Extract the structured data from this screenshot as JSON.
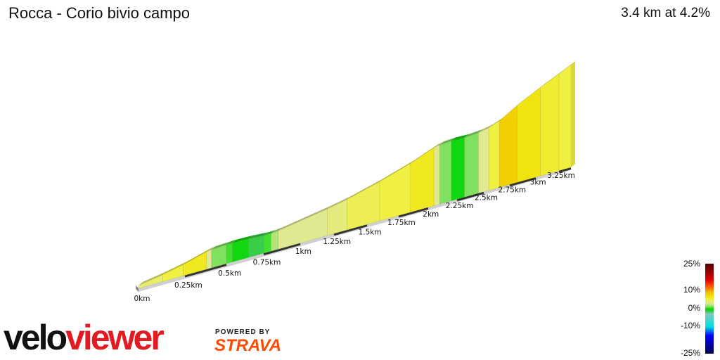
{
  "header": {
    "title": "Rocca - Corio bivio campo",
    "summary": "3.4 km at 4.2%"
  },
  "chart_data": {
    "type": "area",
    "title": "Rocca - Corio bivio campo",
    "distance_km": 3.4,
    "avg_gradient_pct": 4.2,
    "x_unit": "km",
    "x_ticks": [
      "0km",
      "0.25km",
      "0.5km",
      "0.75km",
      "1km",
      "1.25km",
      "1.5km",
      "1.75km",
      "2km",
      "2.25km",
      "2.5km",
      "2.75km",
      "3km",
      "3.25km"
    ],
    "segments": [
      {
        "start_km": 0.0,
        "end_km": 0.13,
        "gradient_pct": 4
      },
      {
        "start_km": 0.13,
        "end_km": 0.24,
        "gradient_pct": 5
      },
      {
        "start_km": 0.24,
        "end_km": 0.38,
        "gradient_pct": 6
      },
      {
        "start_km": 0.38,
        "end_km": 0.41,
        "gradient_pct": 3
      },
      {
        "start_km": 0.41,
        "end_km": 0.5,
        "gradient_pct": 1
      },
      {
        "start_km": 0.5,
        "end_km": 0.54,
        "gradient_pct": 0.5
      },
      {
        "start_km": 0.54,
        "end_km": 0.65,
        "gradient_pct": -0.5
      },
      {
        "start_km": 0.65,
        "end_km": 0.75,
        "gradient_pct": -1.5
      },
      {
        "start_km": 0.75,
        "end_km": 0.8,
        "gradient_pct": 0.5
      },
      {
        "start_km": 0.8,
        "end_km": 0.85,
        "gradient_pct": 2
      },
      {
        "start_km": 0.85,
        "end_km": 1.2,
        "gradient_pct": 3
      },
      {
        "start_km": 1.2,
        "end_km": 1.35,
        "gradient_pct": 3.5
      },
      {
        "start_km": 1.35,
        "end_km": 1.6,
        "gradient_pct": 4.5
      },
      {
        "start_km": 1.6,
        "end_km": 1.85,
        "gradient_pct": 5
      },
      {
        "start_km": 1.85,
        "end_km": 2.05,
        "gradient_pct": 6
      },
      {
        "start_km": 2.05,
        "end_km": 2.1,
        "gradient_pct": 3
      },
      {
        "start_km": 2.1,
        "end_km": 2.2,
        "gradient_pct": 1
      },
      {
        "start_km": 2.2,
        "end_km": 2.32,
        "gradient_pct": -0.5
      },
      {
        "start_km": 2.32,
        "end_km": 2.45,
        "gradient_pct": 1
      },
      {
        "start_km": 2.45,
        "end_km": 2.55,
        "gradient_pct": 3
      },
      {
        "start_km": 2.55,
        "end_km": 2.65,
        "gradient_pct": 5
      },
      {
        "start_km": 2.65,
        "end_km": 2.82,
        "gradient_pct": 8
      },
      {
        "start_km": 2.82,
        "end_km": 3.05,
        "gradient_pct": 6.5
      },
      {
        "start_km": 3.05,
        "end_km": 3.25,
        "gradient_pct": 5.5
      },
      {
        "start_km": 3.25,
        "end_km": 3.4,
        "gradient_pct": 5
      }
    ],
    "legend": {
      "labels": [
        "25%",
        "10%",
        "0%",
        "-10%",
        "-25%"
      ],
      "stops": [
        {
          "pct": 25,
          "color": "#500000"
        },
        {
          "pct": 16,
          "color": "#e00000"
        },
        {
          "pct": 12,
          "color": "#ff6000"
        },
        {
          "pct": 9,
          "color": "#f0c000"
        },
        {
          "pct": 7,
          "color": "#f0e000"
        },
        {
          "pct": 5,
          "color": "#f0f040"
        },
        {
          "pct": 3,
          "color": "#e0e890"
        },
        {
          "pct": 1,
          "color": "#80e060"
        },
        {
          "pct": 0,
          "color": "#00dd00"
        },
        {
          "pct": -1,
          "color": "#20d020"
        },
        {
          "pct": -3,
          "color": "#80c8c0"
        },
        {
          "pct": -10,
          "color": "#00e0e0"
        },
        {
          "pct": -15,
          "color": "#0000ff"
        },
        {
          "pct": -25,
          "color": "#000050"
        }
      ]
    }
  },
  "branding": {
    "logo_part1": "velo",
    "logo_part2": "viewer",
    "powered_by": "POWERED BY",
    "strava": "STRAVA"
  }
}
